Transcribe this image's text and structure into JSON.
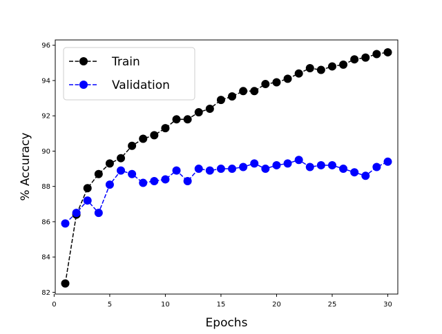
{
  "chart_data": {
    "type": "line",
    "title": "",
    "xlabel": "Epochs",
    "ylabel": "% Accuracy",
    "xlim": [
      0.1,
      30.9
    ],
    "ylim": [
      81.9,
      96.3
    ],
    "xticks": [
      0,
      5,
      10,
      15,
      20,
      25,
      30
    ],
    "yticks": [
      82,
      84,
      86,
      88,
      90,
      92,
      94,
      96
    ],
    "grid": false,
    "legend": "upper left",
    "x": [
      1,
      2,
      3,
      4,
      5,
      6,
      7,
      8,
      9,
      10,
      11,
      12,
      13,
      14,
      15,
      16,
      17,
      18,
      19,
      20,
      21,
      22,
      23,
      24,
      25,
      26,
      27,
      28,
      29,
      30
    ],
    "series": [
      {
        "name": "Train",
        "color": "#000000",
        "linestyle": "dashed",
        "marker": "circle",
        "values": [
          82.5,
          86.4,
          87.9,
          88.7,
          89.3,
          89.6,
          90.3,
          90.7,
          90.9,
          91.3,
          91.8,
          91.8,
          92.2,
          92.4,
          92.9,
          93.1,
          93.4,
          93.4,
          93.8,
          93.9,
          94.1,
          94.4,
          94.7,
          94.6,
          94.8,
          94.9,
          95.2,
          95.3,
          95.5,
          95.6
        ]
      },
      {
        "name": "Validation",
        "color": "#0000ff",
        "linestyle": "dashed",
        "marker": "circle",
        "values": [
          85.9,
          86.5,
          87.2,
          86.5,
          88.1,
          88.9,
          88.7,
          88.2,
          88.3,
          88.4,
          88.9,
          88.3,
          89.0,
          88.9,
          89.0,
          89.0,
          89.1,
          89.3,
          89.0,
          89.2,
          89.3,
          89.5,
          89.1,
          89.2,
          89.2,
          89.0,
          88.8,
          88.6,
          89.1,
          89.4
        ]
      }
    ]
  }
}
